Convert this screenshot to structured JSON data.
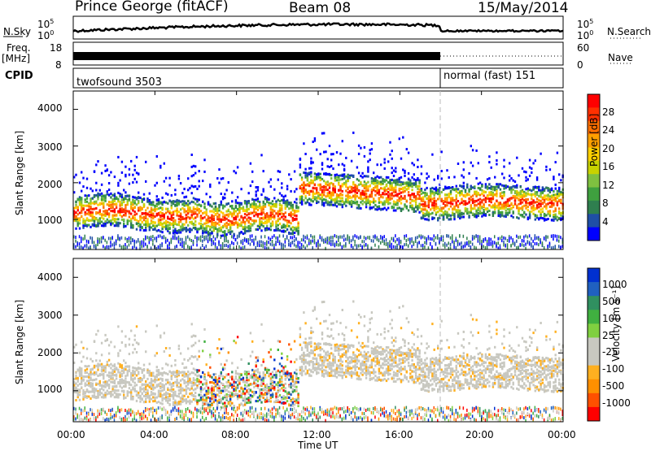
{
  "header": {
    "station": "Prince George (fitACF)",
    "beam": "Beam 08",
    "date": "15/May/2014"
  },
  "panels": {
    "nsky_label": "N.Sky",
    "nsky_ticks": [
      "10^5",
      "10^0"
    ],
    "nsearch_label": "N.Search",
    "nsearch_ticks": [
      "10^5",
      "10^0"
    ],
    "freq_label": "Freq.",
    "freq_unit": "[MHz]",
    "freq_ticks": [
      "18",
      "8"
    ],
    "nave_label": "Nave",
    "nave_ticks": [
      "60",
      "0"
    ],
    "cpid_label": "CPID",
    "cpid_modes": [
      "twofsound 3503",
      "normal (fast) 151"
    ]
  },
  "colors": {
    "power": [
      "#0000ff",
      "#1f4fa6",
      "#2f7f4f",
      "#3fa03f",
      "#7fc040",
      "#c8d200",
      "#ffd000",
      "#ffa000",
      "#ff7000",
      "#ff3000",
      "#ff0000"
    ],
    "velocity": [
      "#ff0000",
      "#ff5000",
      "#ff9000",
      "#ffb020",
      "#c8c8c0",
      "#c8c8c0",
      "#80d040",
      "#40b040",
      "#309060",
      "#2060c0",
      "#0030d0"
    ]
  },
  "chart_data": [
    {
      "type": "heatmap",
      "title": "",
      "xlabel": "Time UT",
      "ylabel": "Slant Range [km]",
      "x_ticks": [
        "00:00",
        "04:00",
        "08:00",
        "12:00",
        "16:00",
        "20:00",
        "00:00"
      ],
      "y_ticks": [
        1000,
        2000,
        3000,
        4000
      ],
      "xlim": [
        0,
        24
      ],
      "ylim": [
        180,
        4500
      ],
      "colorbar_label": "Power [dB]",
      "colorbar_ticks": [
        4,
        8,
        12,
        16,
        20,
        24,
        28
      ],
      "colorbar_range": [
        0,
        30
      ]
    },
    {
      "type": "heatmap",
      "title": "",
      "xlabel": "Time UT",
      "ylabel": "Slant Range [km]",
      "x_ticks": [
        "00:00",
        "04:00",
        "08:00",
        "12:00",
        "16:00",
        "20:00",
        "00:00"
      ],
      "y_ticks": [
        1000,
        2000,
        3000,
        4000
      ],
      "xlim": [
        0,
        24
      ],
      "ylim": [
        180,
        4500
      ],
      "colorbar_label": "Velocity [m s⁻¹]",
      "colorbar_ticks": [
        1000,
        500,
        100,
        25,
        -25,
        -100,
        -500,
        -1000
      ]
    }
  ]
}
